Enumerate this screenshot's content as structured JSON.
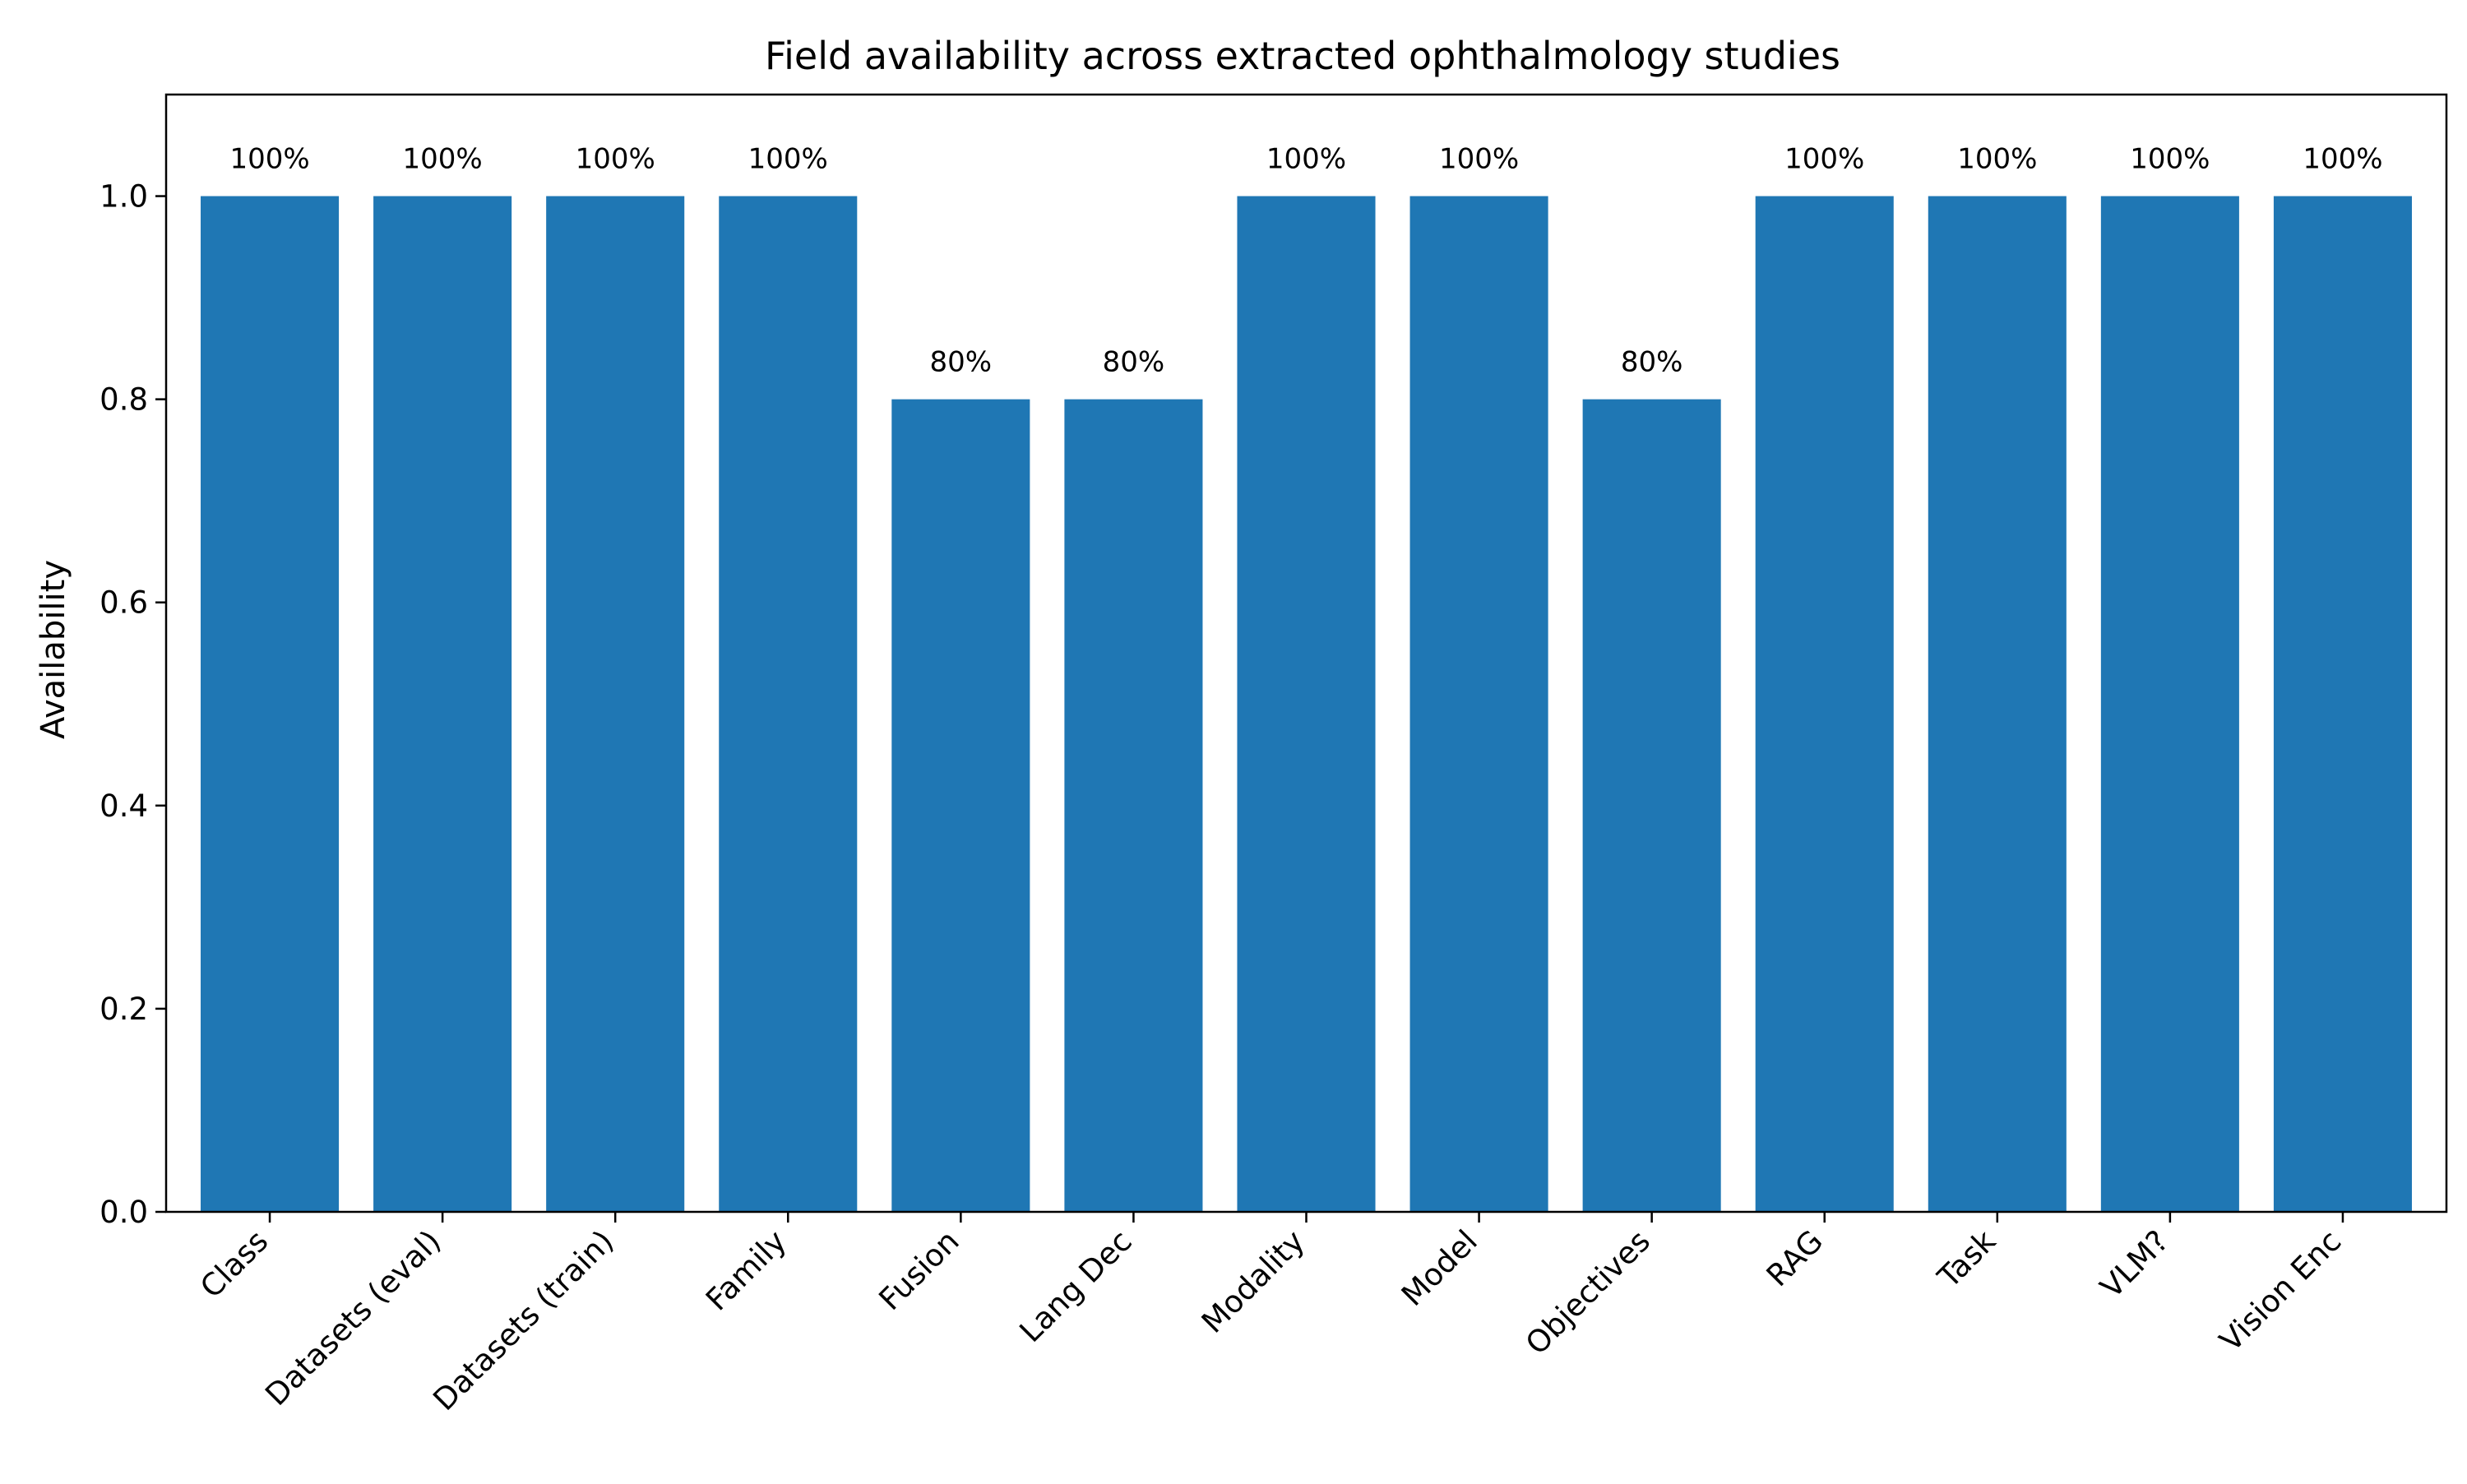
{
  "chart_data": {
    "type": "bar",
    "title": "Field availability across extracted ophthalmology studies",
    "xlabel": "",
    "ylabel": "Availability",
    "categories": [
      "Class",
      "Datasets (eval)",
      "Datasets (train)",
      "Family",
      "Fusion",
      "Lang Dec",
      "Modality",
      "Model",
      "Objectives",
      "RAG",
      "Task",
      "VLM?",
      "Vision Enc"
    ],
    "values": [
      1.0,
      1.0,
      1.0,
      1.0,
      0.8,
      0.8,
      1.0,
      1.0,
      0.8,
      1.0,
      1.0,
      1.0,
      1.0
    ],
    "data_labels": [
      "100%",
      "100%",
      "100%",
      "100%",
      "80%",
      "80%",
      "100%",
      "100%",
      "80%",
      "100%",
      "100%",
      "100%",
      "100%"
    ],
    "ylim": [
      0,
      1.1
    ],
    "yticks": [
      0.0,
      0.2,
      0.4,
      0.6,
      0.8,
      1.0
    ],
    "ytick_labels": [
      "0.0",
      "0.2",
      "0.4",
      "0.6",
      "0.8",
      "1.0"
    ],
    "grid": false,
    "legend": "none",
    "bar_color": "#1f77b4"
  }
}
